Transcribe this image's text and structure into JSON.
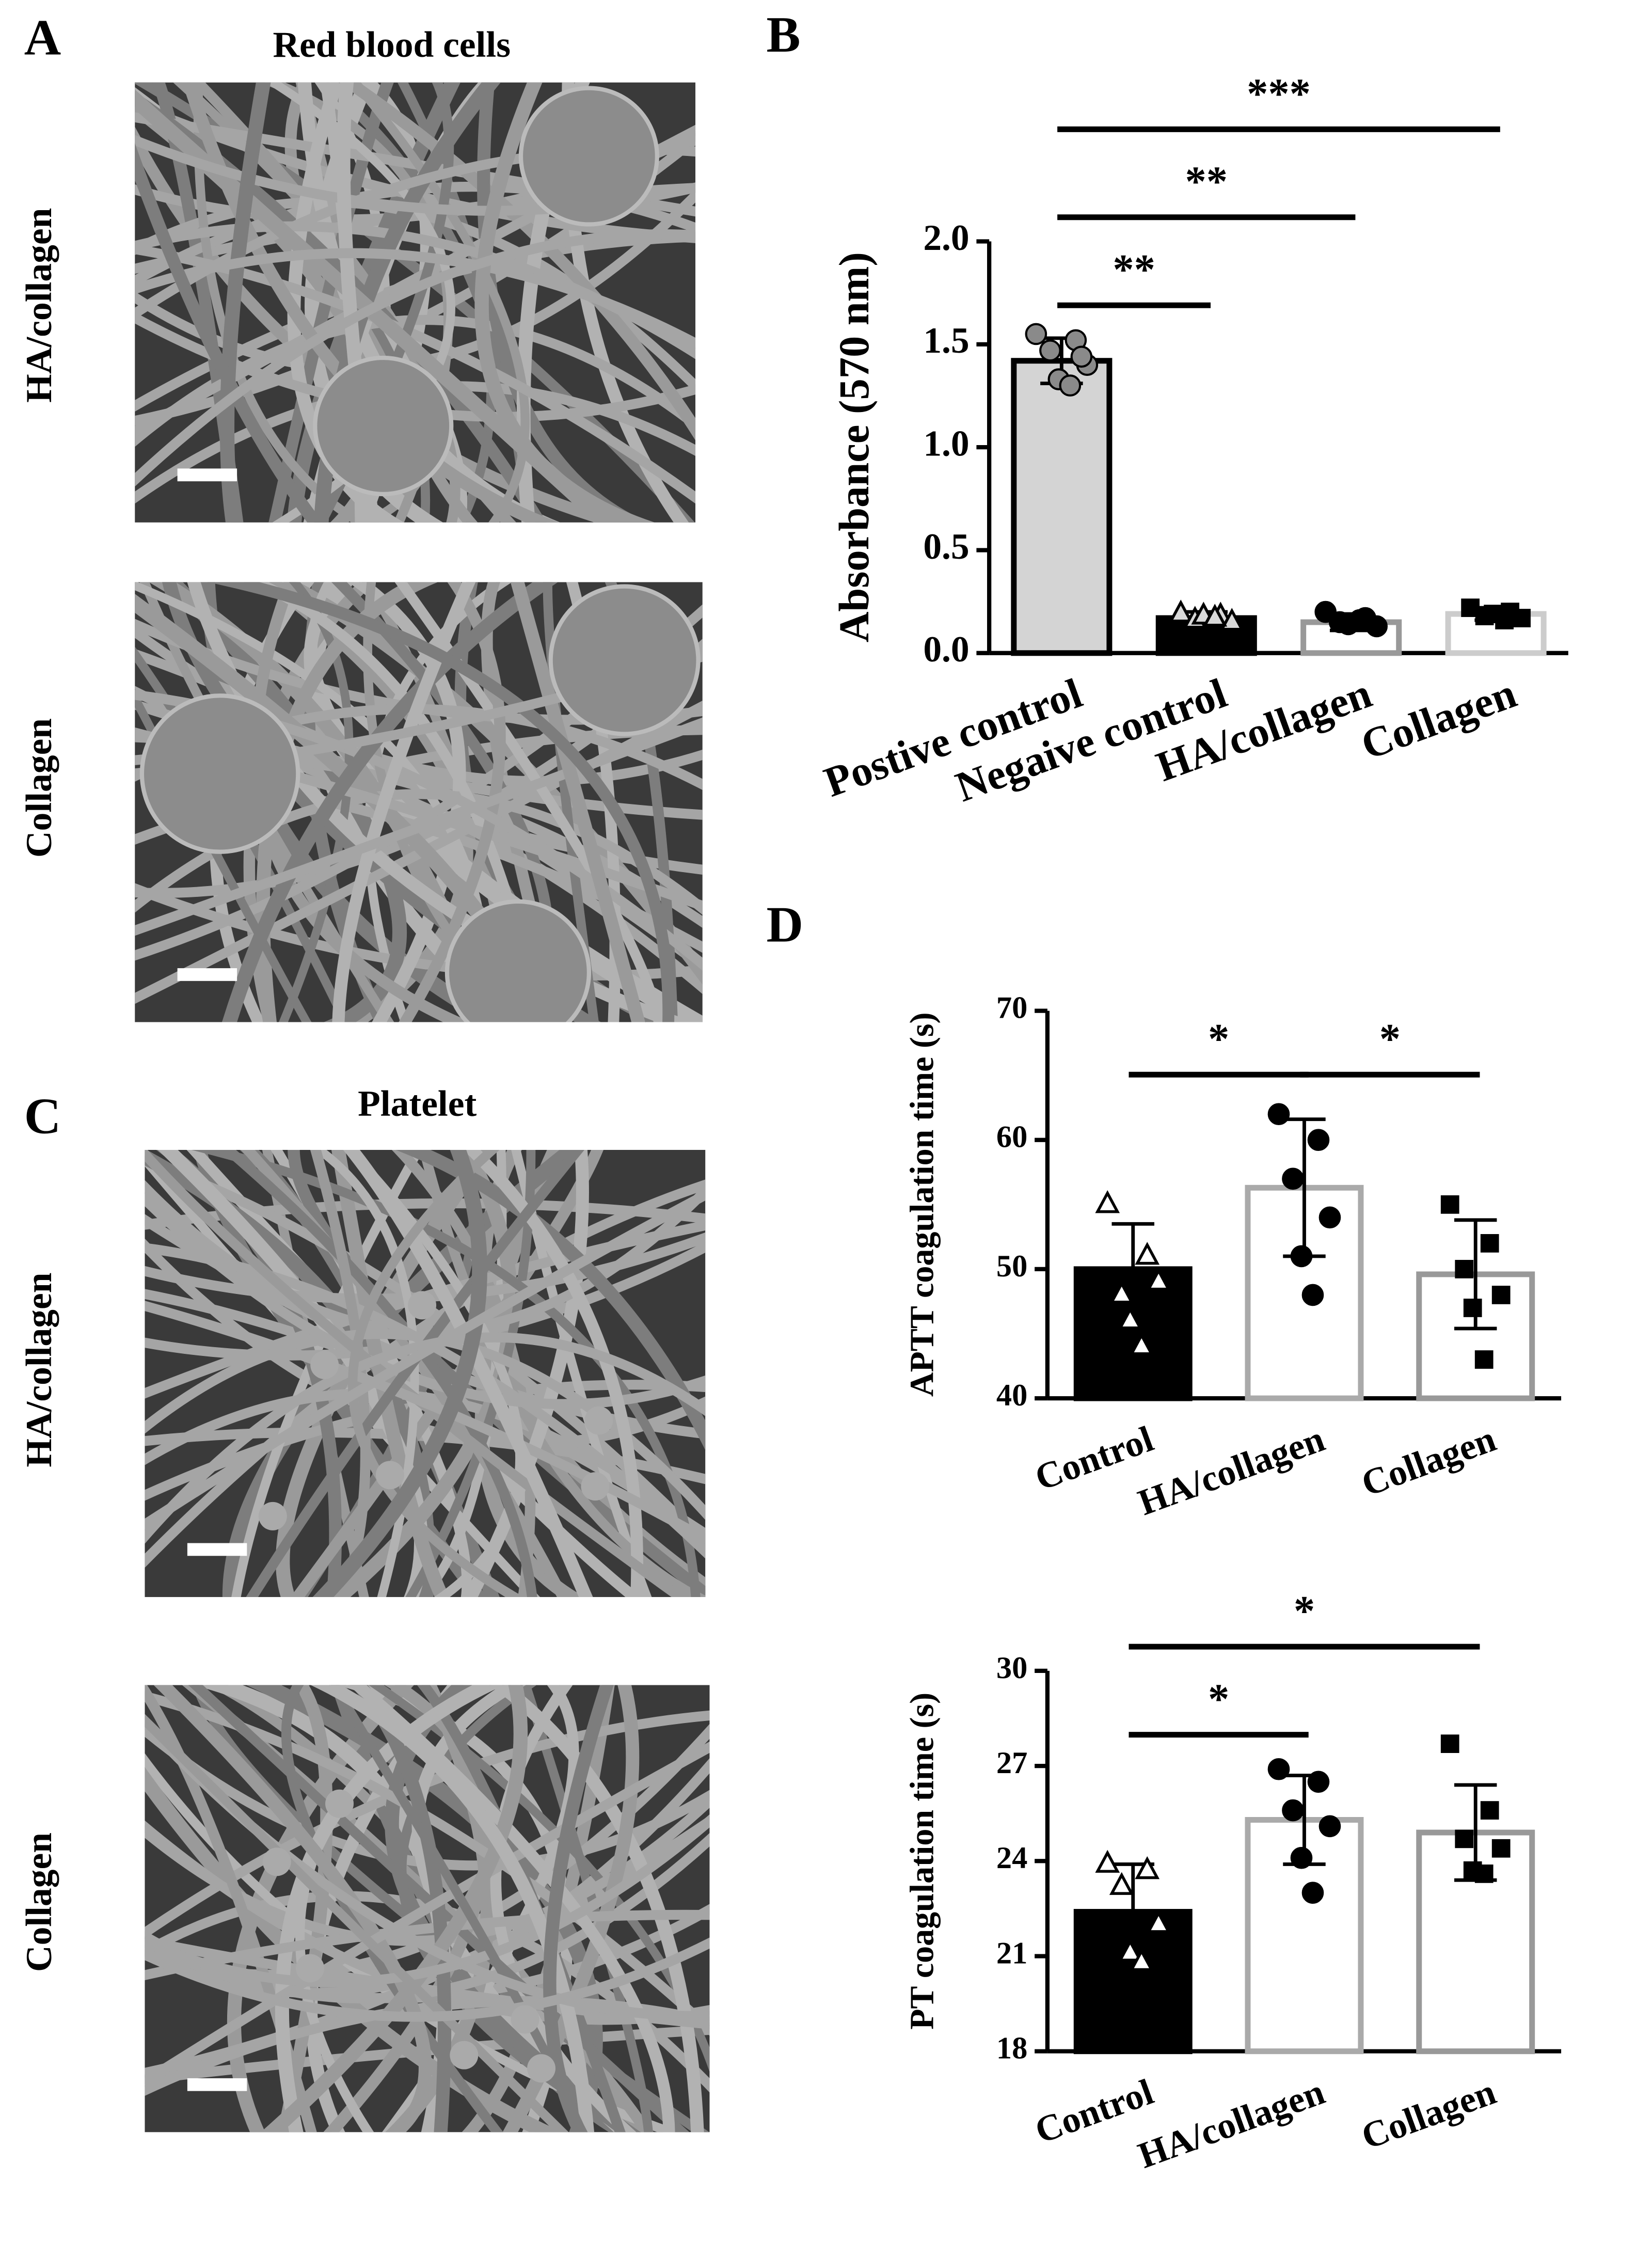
{
  "panel_labels": {
    "a": "A",
    "b": "B",
    "c": "C",
    "d": "D"
  },
  "panel_a": {
    "title": "Red blood cells",
    "rows": [
      "HA/collagen",
      "Collagen"
    ]
  },
  "panel_c": {
    "title": "Platelet",
    "rows": [
      "HA/collagen",
      "Collagen"
    ]
  },
  "chart_data": [
    {
      "type": "bar",
      "y_label": "Absorbance (570 nm)",
      "categories": [
        "Postive control",
        "Negaive control",
        "HA/collagen",
        "Collagen"
      ],
      "values": [
        1.42,
        0.17,
        0.15,
        0.19
      ],
      "errors": [
        0.11,
        0.03,
        0.04,
        0.03
      ],
      "points": [
        [
          1.55,
          1.52,
          1.47,
          1.4,
          1.33,
          1.3,
          1.44
        ],
        [
          0.19,
          0.18,
          0.16,
          0.15,
          0.18,
          0.17
        ],
        [
          0.2,
          0.17,
          0.15,
          0.13,
          0.14,
          0.16
        ],
        [
          0.22,
          0.2,
          0.18,
          0.17,
          0.19,
          0.16
        ]
      ],
      "colors": [
        "#d4d4d4",
        "#000000",
        "#ffffff",
        "#ffffff"
      ],
      "edge_colors": [
        "#000000",
        "#000000",
        "#999999",
        "#cccccc"
      ],
      "markers": [
        "circle",
        "triangle",
        "circle",
        "square"
      ],
      "marker_colors": [
        "#8a8a8a",
        "#d8d8d8",
        "#000000",
        "#000000"
      ],
      "ylim": [
        0,
        2.0
      ],
      "yticks": [
        {
          "value": 0,
          "label": "0.0"
        },
        {
          "value": 0.5,
          "label": "0.5"
        },
        {
          "value": 1.0,
          "label": "1.0"
        },
        {
          "value": 1.5,
          "label": "1.5"
        },
        {
          "value": 2.0,
          "label": "2.0"
        }
      ],
      "significance": [
        {
          "between": [
            "Postive control",
            "Negaive control"
          ],
          "label": "**"
        },
        {
          "between": [
            "Postive control",
            "HA/collagen"
          ],
          "label": "**"
        },
        {
          "between": [
            "Postive control",
            "Collagen"
          ],
          "label": "***"
        }
      ]
    },
    {
      "type": "bar",
      "y_label": "APTT coagulation time (s)",
      "categories": [
        "Control",
        "HA/collagen",
        "Collagen"
      ],
      "values": [
        50.0,
        56.3,
        49.6
      ],
      "errors": [
        3.5,
        5.3,
        4.2
      ],
      "points": [
        [
          55,
          51,
          48,
          49,
          46,
          44
        ],
        [
          62,
          60,
          57,
          54,
          51,
          48
        ],
        [
          55,
          52,
          50,
          48,
          47,
          43
        ]
      ],
      "colors": [
        "#000000",
        "#ffffff",
        "#ffffff"
      ],
      "edge_colors": [
        "#000000",
        "#aaaaaa",
        "#999999"
      ],
      "markers": [
        "triangle",
        "circle",
        "square"
      ],
      "marker_colors": [
        "#ffffff",
        "#000000",
        "#000000"
      ],
      "ylim": [
        40,
        70
      ],
      "yticks": [
        40,
        50,
        60,
        70
      ],
      "significance": [
        {
          "between": [
            "Control",
            "HA/collagen"
          ],
          "label": "*"
        },
        {
          "between": [
            "HA/collagen",
            "Collagen"
          ],
          "label": "*"
        }
      ]
    },
    {
      "type": "bar",
      "y_label": "PT coagulation time (s)",
      "categories": [
        "Control",
        "HA/collagen",
        "Collagen"
      ],
      "values": [
        22.4,
        25.3,
        24.9
      ],
      "errors": [
        1.5,
        1.4,
        1.5
      ],
      "points": [
        [
          23.9,
          23.7,
          23.2,
          22.0,
          21.1,
          20.8
        ],
        [
          26.9,
          26.5,
          25.6,
          25.1,
          24.1,
          23.0
        ],
        [
          27.7,
          25.6,
          24.7,
          24.4,
          23.7,
          23.6
        ]
      ],
      "colors": [
        "#000000",
        "#ffffff",
        "#ffffff"
      ],
      "edge_colors": [
        "#000000",
        "#aaaaaa",
        "#999999"
      ],
      "markers": [
        "triangle",
        "circle",
        "square"
      ],
      "marker_colors": [
        "#ffffff",
        "#000000",
        "#000000"
      ],
      "ylim": [
        18,
        30
      ],
      "yticks": [
        18,
        21,
        24,
        27,
        30
      ],
      "significance": [
        {
          "between": [
            "Control",
            "HA/collagen"
          ],
          "label": "*"
        },
        {
          "between": [
            "Control",
            "Collagen"
          ],
          "label": "*"
        }
      ]
    }
  ]
}
